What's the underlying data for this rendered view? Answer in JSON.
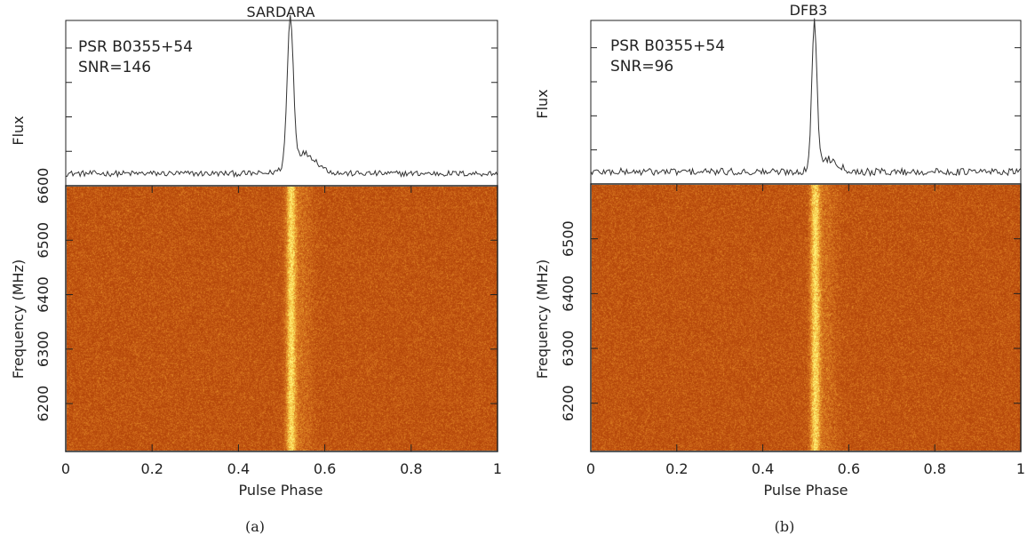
{
  "chart_data": [
    {
      "type": "heatmap",
      "panel_label": "(a)",
      "title": "SARDARA",
      "annotation": [
        "PSR B0355+54",
        "SNR=146"
      ],
      "profile": {
        "ylabel": "Flux",
        "peak_phase": 0.52,
        "peak_width": 0.007,
        "tail_amplitude": 0.14,
        "tail_phase": 0.55,
        "tail_width": 0.03,
        "noise": 0.02
      },
      "xlabel": "Pulse Phase",
      "ylabel": "Frequency (MHz)",
      "xlim": [
        0,
        1
      ],
      "ylim": [
        6112,
        6600
      ],
      "xticks": [
        0,
        0.2,
        0.4,
        0.6,
        0.8,
        1
      ],
      "xtick_labels": [
        "0",
        "0.2",
        "0.4",
        "0.6",
        "0.8",
        "1"
      ],
      "yticks": [
        6200,
        6300,
        6400,
        6500,
        6600
      ],
      "ytick_labels": [
        "6200",
        "6300",
        "6400",
        "6500",
        "6600"
      ],
      "pulse_phase": 0.52,
      "pulse_width": 0.008,
      "colormap": [
        "#b4460a",
        "#cc6418",
        "#e28a26",
        "#f5c040",
        "#fff278"
      ]
    },
    {
      "type": "heatmap",
      "panel_label": "(b)",
      "title": "DFB3",
      "annotation": [
        "PSR B0355+54",
        "SNR=96"
      ],
      "profile": {
        "ylabel": "Flux",
        "peak_phase": 0.52,
        "peak_width": 0.006,
        "tail_amplitude": 0.09,
        "tail_phase": 0.55,
        "tail_width": 0.025,
        "noise": 0.025
      },
      "xlabel": "Pulse Phase",
      "ylabel": "Frequency (MHz)",
      "xlim": [
        0,
        1
      ],
      "ylim": [
        6112,
        6600
      ],
      "xticks": [
        0,
        0.2,
        0.4,
        0.6,
        0.8,
        1
      ],
      "xtick_labels": [
        "0",
        "0.2",
        "0.4",
        "0.6",
        "0.8",
        "1"
      ],
      "yticks": [
        6200,
        6300,
        6400,
        6500
      ],
      "ytick_labels": [
        "6200",
        "6300",
        "6400",
        "6500"
      ],
      "pulse_phase": 0.52,
      "pulse_width": 0.008,
      "colormap": [
        "#b4460a",
        "#cc6418",
        "#e28a26",
        "#f5c040",
        "#fff278"
      ]
    }
  ]
}
